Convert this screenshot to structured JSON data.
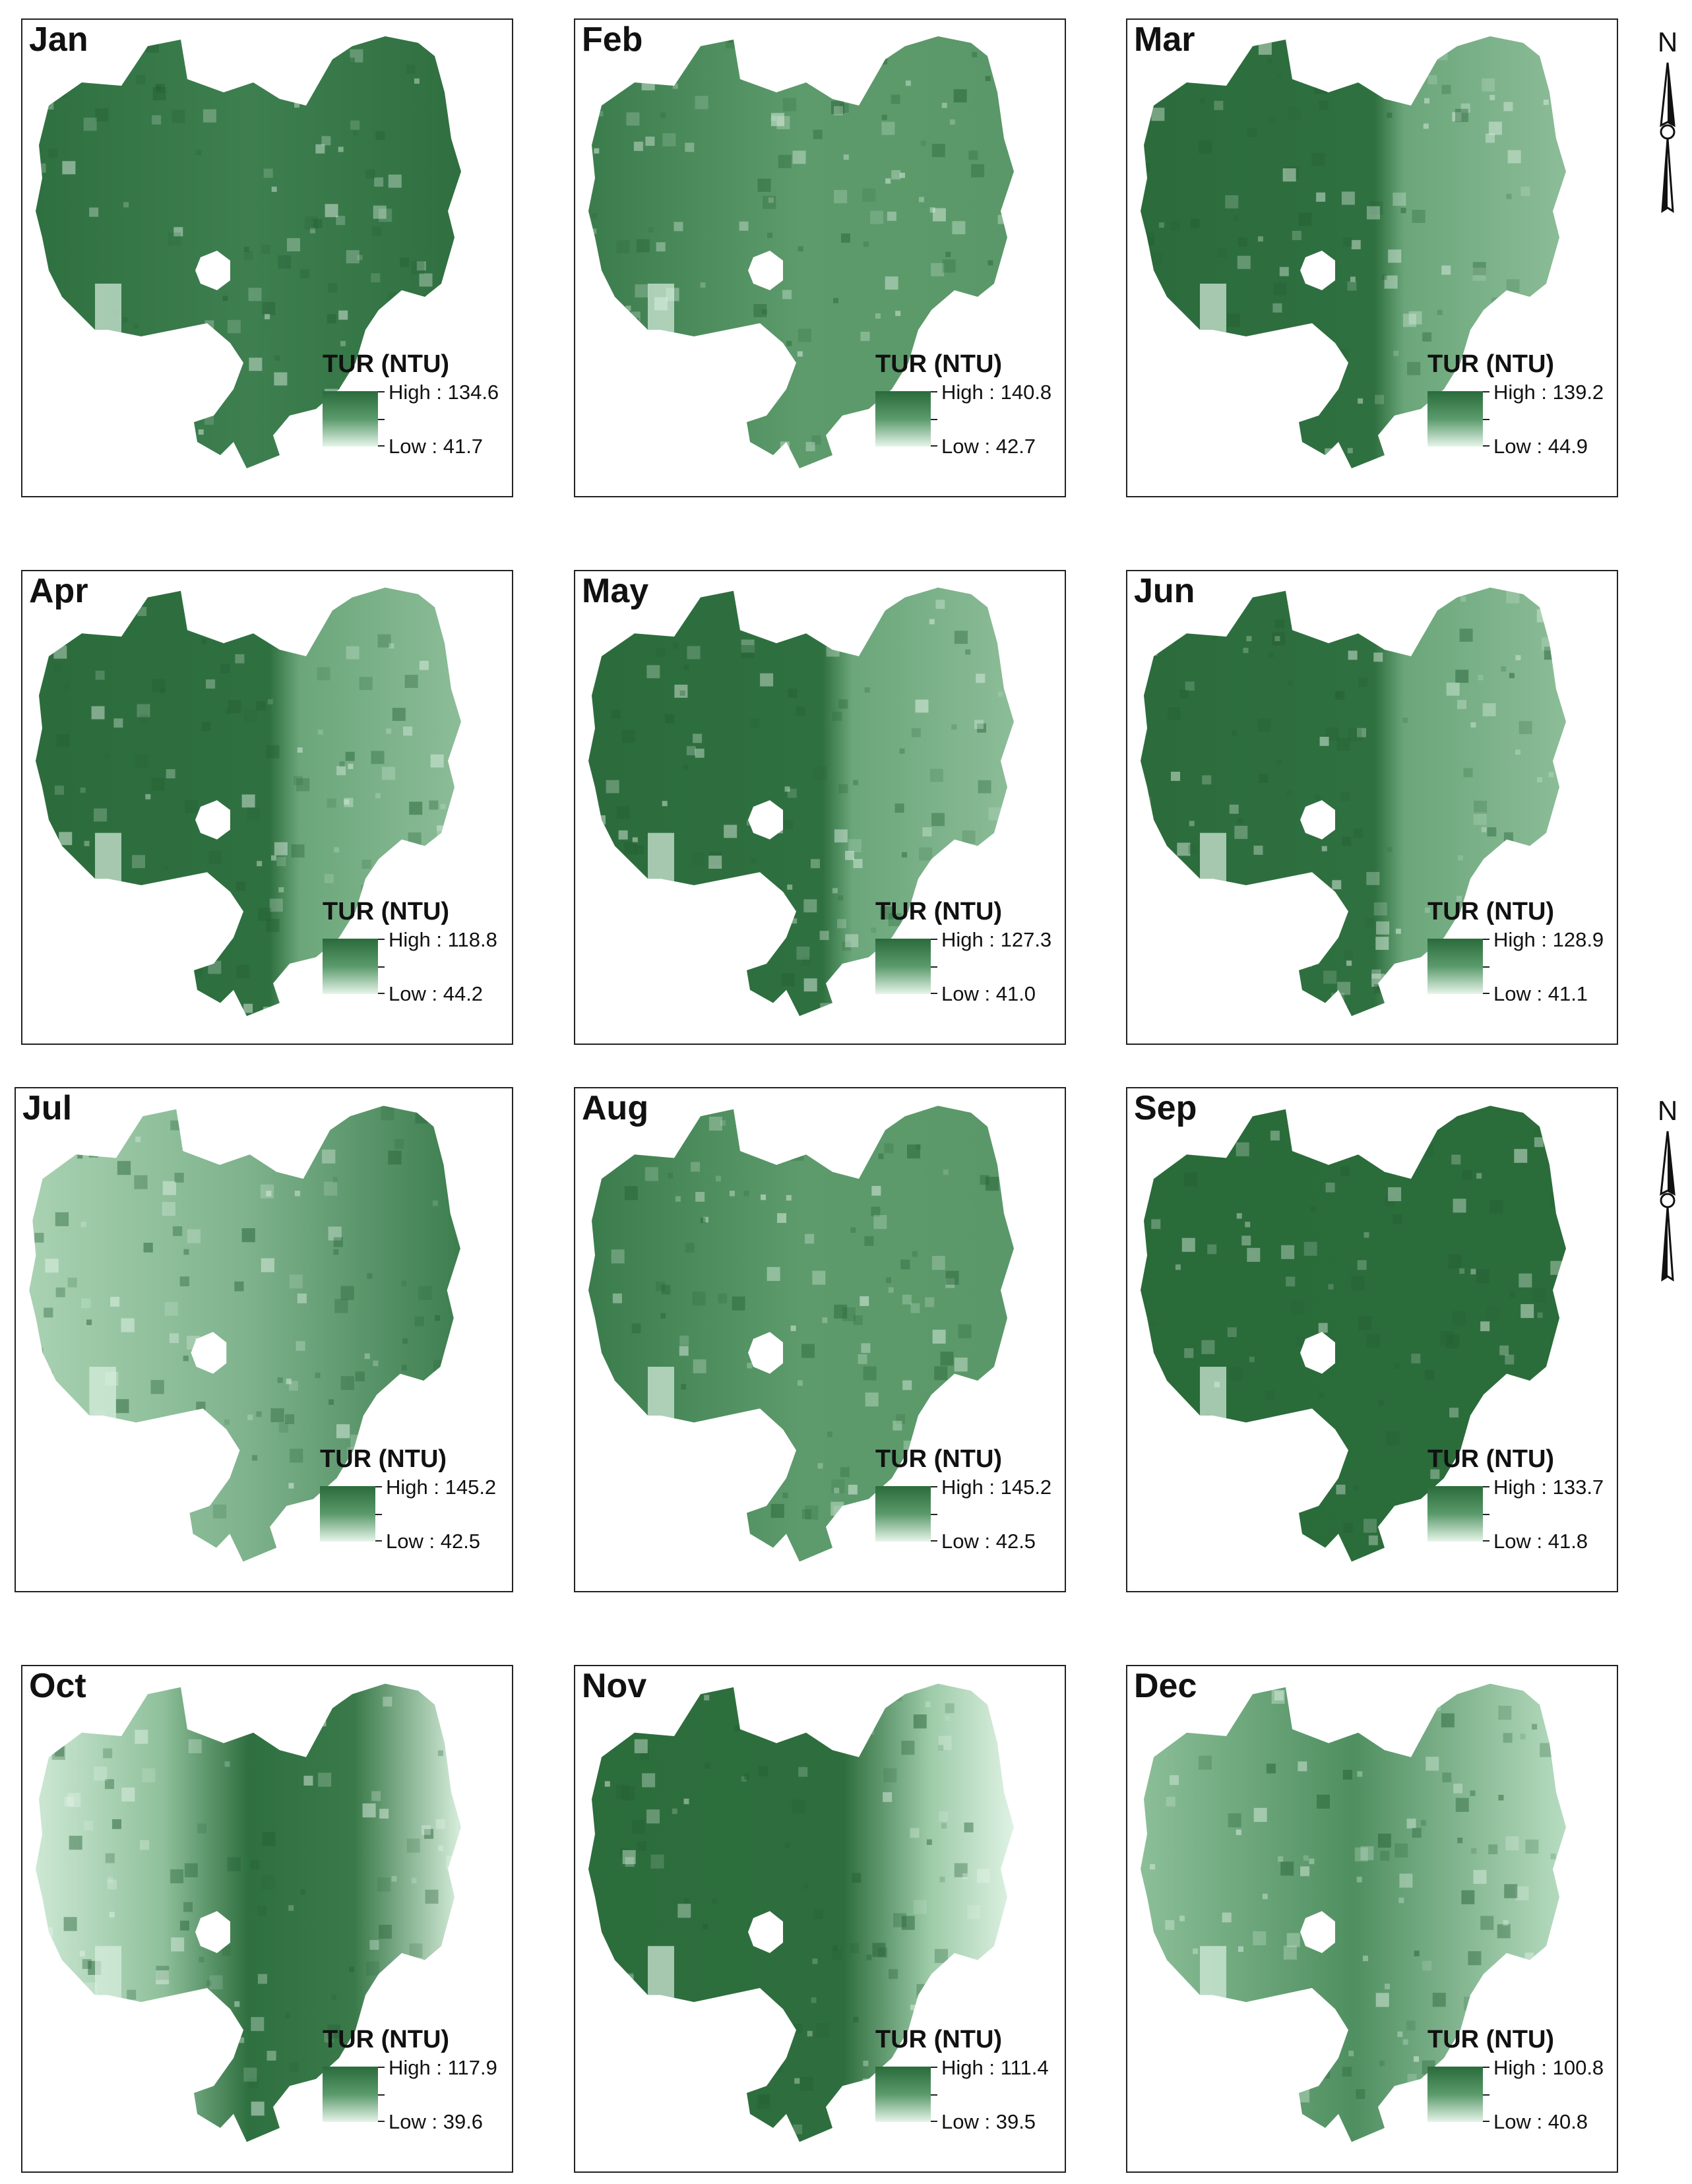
{
  "legend_title": "TUR (NTU)",
  "high_prefix": "High : ",
  "low_prefix": "Low : ",
  "north_label": "N",
  "colors": {
    "high": "#2a6b3c",
    "mid": "#5a9a6b",
    "low": "#e6f5ea",
    "border": "#222222"
  },
  "panels": [
    {
      "month": "Jan",
      "high": "134.6",
      "low": "41.7",
      "tone": "dark-patchy"
    },
    {
      "month": "Feb",
      "high": "140.8",
      "low": "42.7",
      "tone": "medium"
    },
    {
      "month": "Mar",
      "high": "139.2",
      "low": "44.9",
      "tone": "dark-west-light-east"
    },
    {
      "month": "Apr",
      "high": "118.8",
      "low": "44.2",
      "tone": "dark-west-light-east"
    },
    {
      "month": "May",
      "high": "127.3",
      "low": "41.0",
      "tone": "dark-west-light-east"
    },
    {
      "month": "Jun",
      "high": "128.9",
      "low": "41.1",
      "tone": "dark-west-light-east"
    },
    {
      "month": "Jul",
      "high": "145.2",
      "low": "42.5",
      "tone": "light-patchy"
    },
    {
      "month": "Aug",
      "high": "145.2",
      "low": "42.5",
      "tone": "medium"
    },
    {
      "month": "Sep",
      "high": "133.7",
      "low": "41.8",
      "tone": "dark"
    },
    {
      "month": "Oct",
      "high": "117.9",
      "low": "39.6",
      "tone": "light-west-dark-center"
    },
    {
      "month": "Nov",
      "high": "111.4",
      "low": "39.5",
      "tone": "dark-light-east"
    },
    {
      "month": "Dec",
      "high": "100.8",
      "low": "40.8",
      "tone": "medium-light-patchy"
    }
  ]
}
